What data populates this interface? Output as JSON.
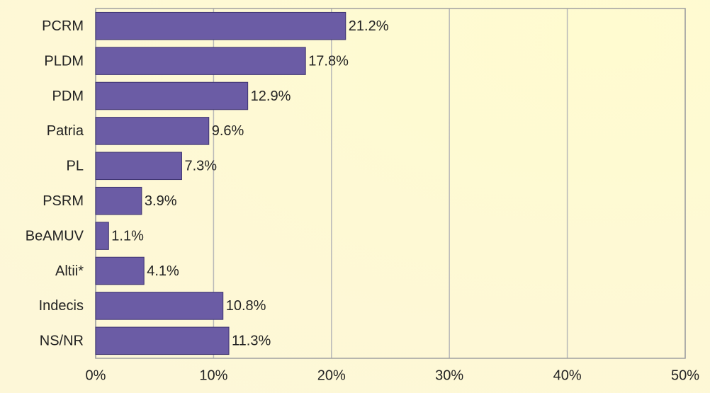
{
  "chart_data": {
    "type": "barh",
    "categories": [
      "PCRM",
      "PLDM",
      "PDM",
      "Patria",
      "PL",
      "PSRM",
      "BeAMUV",
      "Altii*",
      "Indecis",
      "NS/NR"
    ],
    "values": [
      21.2,
      17.8,
      12.9,
      9.6,
      7.3,
      3.9,
      1.1,
      4.1,
      10.8,
      11.3
    ],
    "value_labels": [
      "21.2%",
      "17.8%",
      "12.9%",
      "9.6%",
      "7.3%",
      "3.9%",
      "1.1%",
      "4.1%",
      "10.8%",
      "11.3%"
    ],
    "color": "#6b5ca5",
    "xlim": [
      0,
      50
    ],
    "xticks": [
      {
        "value": 0,
        "label": "0%"
      },
      {
        "value": 10,
        "label": "10%"
      },
      {
        "value": 20,
        "label": "20%"
      },
      {
        "value": 30,
        "label": "30%"
      },
      {
        "value": 40,
        "label": "40%"
      },
      {
        "value": 50,
        "label": "50%"
      }
    ],
    "grid": true
  }
}
